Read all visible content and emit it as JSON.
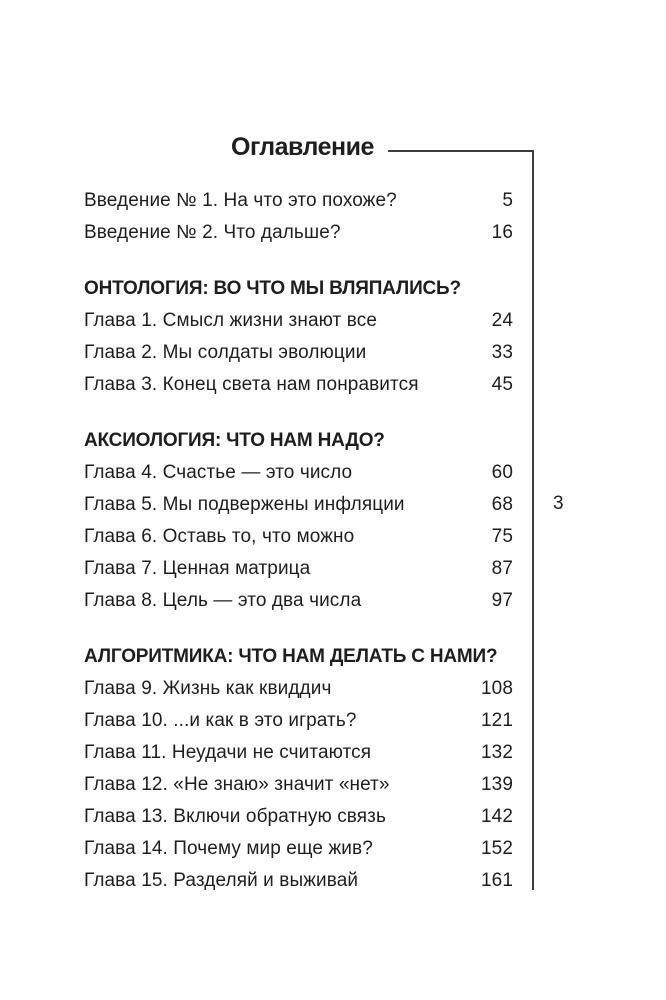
{
  "page": {
    "title": "Оглавление",
    "page_number": "3",
    "colors": {
      "background": "#ffffff",
      "text": "#1e1e1e",
      "rule_line": "#3c3c3c"
    }
  },
  "toc": {
    "intro_entries": [
      {
        "label": "Введение № 1. На что это похоже?",
        "page": "5"
      },
      {
        "label": "Введение № 2. Что дальше?",
        "page": "16"
      }
    ],
    "sections": [
      {
        "heading": "ОНТОЛОГИЯ: ВО ЧТО МЫ ВЛЯПАЛИСЬ?",
        "entries": [
          {
            "label": "Глава 1. Смысл жизни знают все",
            "page": "24"
          },
          {
            "label": "Глава 2. Мы солдаты эволюции",
            "page": "33"
          },
          {
            "label": "Глава 3. Конец света нам понравится",
            "page": "45"
          }
        ]
      },
      {
        "heading": "АКСИОЛОГИЯ: ЧТО НАМ НАДО?",
        "entries": [
          {
            "label": "Глава 4. Счастье — это число",
            "page": "60"
          },
          {
            "label": "Глава 5. Мы подвержены инфляции",
            "page": "68"
          },
          {
            "label": "Глава 6. Оставь то, что можно",
            "page": "75"
          },
          {
            "label": "Глава 7. Ценная матрица",
            "page": "87"
          },
          {
            "label": "Глава 8. Цель — это два числа",
            "page": "97"
          }
        ]
      },
      {
        "heading": "АЛГОРИТМИКА: ЧТО НАМ ДЕЛАТЬ С НАМИ?",
        "entries": [
          {
            "label": "Глава 9. Жизнь как квиддич",
            "page": "108"
          },
          {
            "label": "Глава 10. ...и как в это играть?",
            "page": "121"
          },
          {
            "label": "Глава 11. Неудачи не считаются",
            "page": "132"
          },
          {
            "label": "Глава 12. «Не знаю» значит «нет»",
            "page": "139"
          },
          {
            "label": "Глава 13. Включи обратную связь",
            "page": "142"
          },
          {
            "label": "Глава 14. Почему мир еще жив?",
            "page": "152"
          },
          {
            "label": "Глава 15. Разделяй и выживай",
            "page": "161"
          }
        ]
      }
    ]
  }
}
